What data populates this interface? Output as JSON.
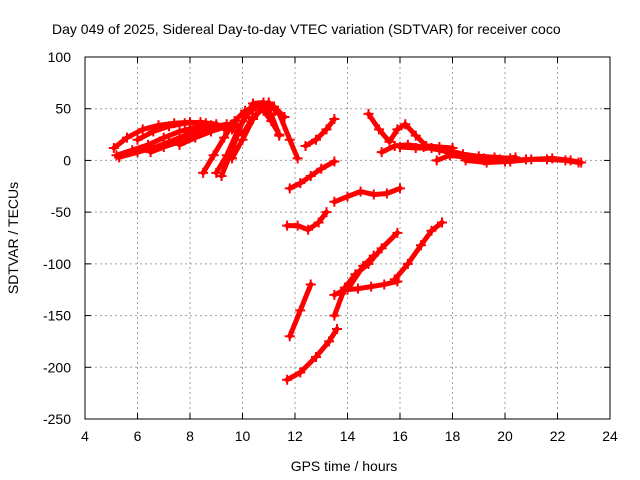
{
  "chart_data": {
    "type": "line",
    "title": "Day 049 of 2025, Sidereal Day-to-day VTEC variation (SDTVAR) for receiver coco",
    "xlabel": "GPS time / hours",
    "ylabel": "SDTVAR / TECUs",
    "xlim": [
      4,
      24
    ],
    "ylim": [
      -250,
      100
    ],
    "xticks": [
      "4",
      "6",
      "8",
      "10",
      "12",
      "14",
      "16",
      "18",
      "20",
      "22",
      "24"
    ],
    "yticks": [
      "100",
      "50",
      "0",
      "-50",
      "-100",
      "-150",
      "-200",
      "-250"
    ],
    "grid": true,
    "line_color": "#ff0000",
    "series": [
      {
        "x": [
          5.1,
          5.6,
          6.2,
          6.8,
          7.4,
          8.0,
          8.6,
          9.0
        ],
        "y": [
          12,
          22,
          30,
          34,
          36,
          37,
          36,
          33
        ]
      },
      {
        "x": [
          5.2,
          5.8,
          6.4,
          7.0,
          7.6,
          8.2,
          8.8,
          9.4
        ],
        "y": [
          5,
          10,
          15,
          22,
          28,
          32,
          34,
          30
        ]
      },
      {
        "x": [
          5.3,
          6.0,
          6.6,
          7.2,
          7.8,
          8.4,
          9.0,
          9.6
        ],
        "y": [
          3,
          8,
          12,
          18,
          24,
          30,
          33,
          35
        ]
      },
      {
        "x": [
          6.0,
          6.6,
          7.2,
          7.8,
          8.4,
          9.0,
          9.6,
          10.0
        ],
        "y": [
          20,
          28,
          33,
          36,
          37,
          35,
          30,
          25
        ]
      },
      {
        "x": [
          6.5,
          7.0,
          7.6,
          8.2,
          8.8,
          9.4,
          9.8
        ],
        "y": [
          8,
          13,
          18,
          26,
          32,
          35,
          34
        ]
      },
      {
        "x": [
          7.6,
          8.2,
          8.8,
          9.3,
          9.8
        ],
        "y": [
          15,
          22,
          28,
          32,
          34
        ]
      },
      {
        "x": [
          8.5,
          8.9,
          9.3,
          9.7,
          10.1,
          10.5,
          10.9
        ],
        "y": [
          -12,
          5,
          22,
          38,
          48,
          52,
          48
        ]
      },
      {
        "x": [
          9.0,
          9.4,
          9.8,
          10.2,
          10.6,
          11.0,
          11.4,
          11.8,
          12.1
        ],
        "y": [
          -12,
          5,
          28,
          45,
          53,
          56,
          45,
          20,
          2
        ]
      },
      {
        "x": [
          9.2,
          9.6,
          10.0,
          10.4,
          10.8,
          11.2,
          11.6
        ],
        "y": [
          -15,
          10,
          38,
          55,
          56,
          52,
          42
        ]
      },
      {
        "x": [
          9.6,
          10.0,
          10.4,
          10.8,
          11.2,
          11.6
        ],
        "y": [
          2,
          20,
          40,
          52,
          50,
          42
        ]
      },
      {
        "x": [
          10.0,
          10.4,
          10.8,
          11.1,
          11.4
        ],
        "y": [
          25,
          42,
          50,
          44,
          24
        ]
      },
      {
        "x": [
          10.8,
          11.1,
          11.4
        ],
        "y": [
          48,
          38,
          25
        ]
      },
      {
        "x": [
          11.8,
          12.2,
          12.6,
          13.0,
          13.5
        ],
        "y": [
          -27,
          -22,
          -15,
          -8,
          -1
        ]
      },
      {
        "x": [
          12.4,
          12.8,
          13.2,
          13.5
        ],
        "y": [
          14,
          20,
          30,
          40
        ]
      },
      {
        "x": [
          11.7,
          12.1,
          12.5,
          12.9,
          13.2
        ],
        "y": [
          -63,
          -63,
          -67,
          -60,
          -50
        ]
      },
      {
        "x": [
          13.5,
          14.0,
          14.5,
          15.0,
          15.5,
          16.0
        ],
        "y": [
          -40,
          -35,
          -30,
          -33,
          -32,
          -27
        ]
      },
      {
        "x": [
          14.8,
          15.2,
          15.6,
          15.9,
          16.2,
          16.6,
          17.0,
          17.5,
          18.0
        ],
        "y": [
          45,
          30,
          18,
          30,
          35,
          24,
          14,
          13,
          12
        ]
      },
      {
        "x": [
          15.3,
          15.8,
          16.3,
          16.9,
          17.5,
          18.0,
          18.6,
          19.2,
          19.8,
          20.4
        ],
        "y": [
          8,
          14,
          15,
          13,
          10,
          7,
          3,
          2,
          1,
          3
        ]
      },
      {
        "x": [
          16.0,
          16.6,
          17.2,
          17.8,
          18.4,
          19.0,
          19.6,
          20.2
        ],
        "y": [
          13,
          12,
          12,
          10,
          6,
          4,
          3,
          2
        ]
      },
      {
        "x": [
          17.4,
          17.9,
          18.5,
          19.2,
          20.0,
          20.8,
          21.6,
          22.3,
          22.8
        ],
        "y": [
          0,
          5,
          3,
          0,
          -1,
          1,
          1,
          0,
          -2
        ]
      },
      {
        "x": [
          18.5,
          19.3,
          20.2,
          21.0,
          21.8,
          22.5,
          22.9
        ],
        "y": [
          0,
          -2,
          -1,
          1,
          2,
          0,
          -2
        ]
      },
      {
        "x": [
          11.8,
          12.2,
          12.6
        ],
        "y": [
          -170,
          -145,
          -120
        ]
      },
      {
        "x": [
          11.7,
          12.2,
          12.8,
          13.3,
          13.6
        ],
        "y": [
          -212,
          -205,
          -190,
          -175,
          -163
        ]
      },
      {
        "x": [
          13.5,
          13.9,
          14.4,
          14.9,
          15.4,
          15.9
        ],
        "y": [
          -130,
          -125,
          -124,
          -122,
          -120,
          -117
        ]
      },
      {
        "x": [
          13.5,
          13.9,
          14.3,
          14.8,
          15.3,
          15.9
        ],
        "y": [
          -150,
          -123,
          -110,
          -100,
          -85,
          -70
        ]
      },
      {
        "x": [
          14.0,
          14.6,
          15.0
        ],
        "y": [
          -125,
          -102,
          -92
        ]
      },
      {
        "x": [
          15.8,
          16.3,
          16.8,
          17.2,
          17.6
        ],
        "y": [
          -115,
          -100,
          -82,
          -68,
          -60
        ]
      }
    ]
  }
}
